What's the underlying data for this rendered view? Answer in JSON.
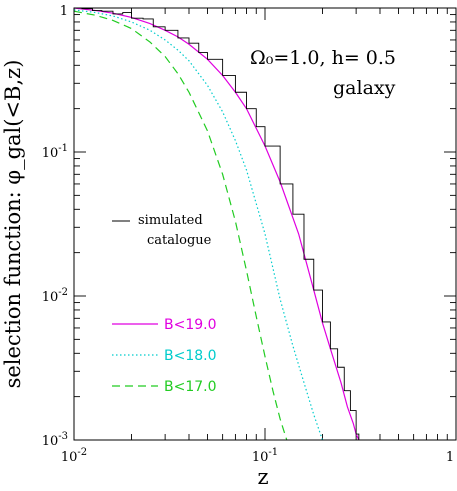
{
  "chart_data": {
    "type": "line",
    "xlabel": "z",
    "ylabel": "selection function: φ_gal(<B,z)",
    "xscale": "log",
    "yscale": "log",
    "xlim": [
      0.01,
      1
    ],
    "ylim": [
      0.001,
      1
    ],
    "x_ticks": [
      {
        "value": 0.01,
        "base": "10",
        "exp": "-2"
      },
      {
        "value": 0.1,
        "base": "10",
        "exp": "-1"
      },
      {
        "value": 1,
        "base": "1",
        "exp": ""
      }
    ],
    "y_ticks": [
      {
        "value": 0.001,
        "base": "10",
        "exp": "-3"
      },
      {
        "value": 0.01,
        "base": "10",
        "exp": "-2"
      },
      {
        "value": 0.1,
        "base": "10",
        "exp": "-1"
      },
      {
        "value": 1,
        "base": "1",
        "exp": ""
      }
    ],
    "annotations": {
      "params": "Ω₀=1.0, h= 0.5",
      "type_label": "galaxy"
    },
    "series": [
      {
        "name": "B<19.0",
        "color": "#e000e0",
        "dash": "solid",
        "x": [
          0.01,
          0.013,
          0.016,
          0.02,
          0.025,
          0.03,
          0.035,
          0.04,
          0.05,
          0.06,
          0.07,
          0.08,
          0.1,
          0.12,
          0.15,
          0.18,
          0.2,
          0.22,
          0.25,
          0.27,
          0.29,
          0.3,
          0.31
        ],
        "y": [
          1.0,
          0.96,
          0.92,
          0.86,
          0.78,
          0.7,
          0.63,
          0.56,
          0.44,
          0.34,
          0.26,
          0.2,
          0.11,
          0.062,
          0.027,
          0.011,
          0.0065,
          0.0043,
          0.0025,
          0.0017,
          0.0013,
          0.0011,
          0.001
        ]
      },
      {
        "name": "B<18.0",
        "color": "#00cccc",
        "dash": "dotted",
        "x": [
          0.01,
          0.013,
          0.016,
          0.02,
          0.025,
          0.03,
          0.035,
          0.04,
          0.05,
          0.06,
          0.07,
          0.08,
          0.1,
          0.12,
          0.14,
          0.16,
          0.18,
          0.2
        ],
        "y": [
          0.97,
          0.93,
          0.88,
          0.8,
          0.7,
          0.6,
          0.51,
          0.43,
          0.29,
          0.19,
          0.12,
          0.075,
          0.027,
          0.0095,
          0.0045,
          0.0025,
          0.0015,
          0.001
        ]
      },
      {
        "name": "B<17.0",
        "color": "#22cc22",
        "dash": "dashed",
        "x": [
          0.01,
          0.013,
          0.016,
          0.02,
          0.025,
          0.03,
          0.035,
          0.04,
          0.05,
          0.06,
          0.07,
          0.08,
          0.09,
          0.1,
          0.11,
          0.12,
          0.13
        ],
        "y": [
          0.95,
          0.89,
          0.82,
          0.72,
          0.58,
          0.46,
          0.35,
          0.26,
          0.14,
          0.07,
          0.033,
          0.015,
          0.0072,
          0.0038,
          0.0022,
          0.0014,
          0.001
        ]
      },
      {
        "name": "simulated catalogue",
        "color": "#000000",
        "dash": "step",
        "x": [
          0.01,
          0.011,
          0.0125,
          0.014,
          0.016,
          0.018,
          0.02,
          0.023,
          0.026,
          0.03,
          0.035,
          0.04,
          0.045,
          0.05,
          0.06,
          0.07,
          0.08,
          0.09,
          0.1,
          0.12,
          0.14,
          0.16,
          0.18,
          0.2,
          0.22,
          0.24,
          0.26,
          0.28,
          0.3,
          0.31
        ],
        "y": [
          1.0,
          0.99,
          0.96,
          0.95,
          0.91,
          0.93,
          0.85,
          0.84,
          0.74,
          0.7,
          0.62,
          0.57,
          0.49,
          0.44,
          0.34,
          0.26,
          0.2,
          0.15,
          0.11,
          0.06,
          0.037,
          0.018,
          0.011,
          0.0066,
          0.0043,
          0.0032,
          0.0022,
          0.0016,
          0.0011,
          0.001
        ]
      }
    ],
    "legend": {
      "simulated_label_line1": "simulated",
      "simulated_label_line2": "catalogue",
      "entries": [
        {
          "label": "B<19.0",
          "color": "#e000e0",
          "dash": "solid"
        },
        {
          "label": "B<18.0",
          "color": "#00cccc",
          "dash": "dotted"
        },
        {
          "label": "B<17.0",
          "color": "#22cc22",
          "dash": "dashed"
        }
      ]
    }
  }
}
